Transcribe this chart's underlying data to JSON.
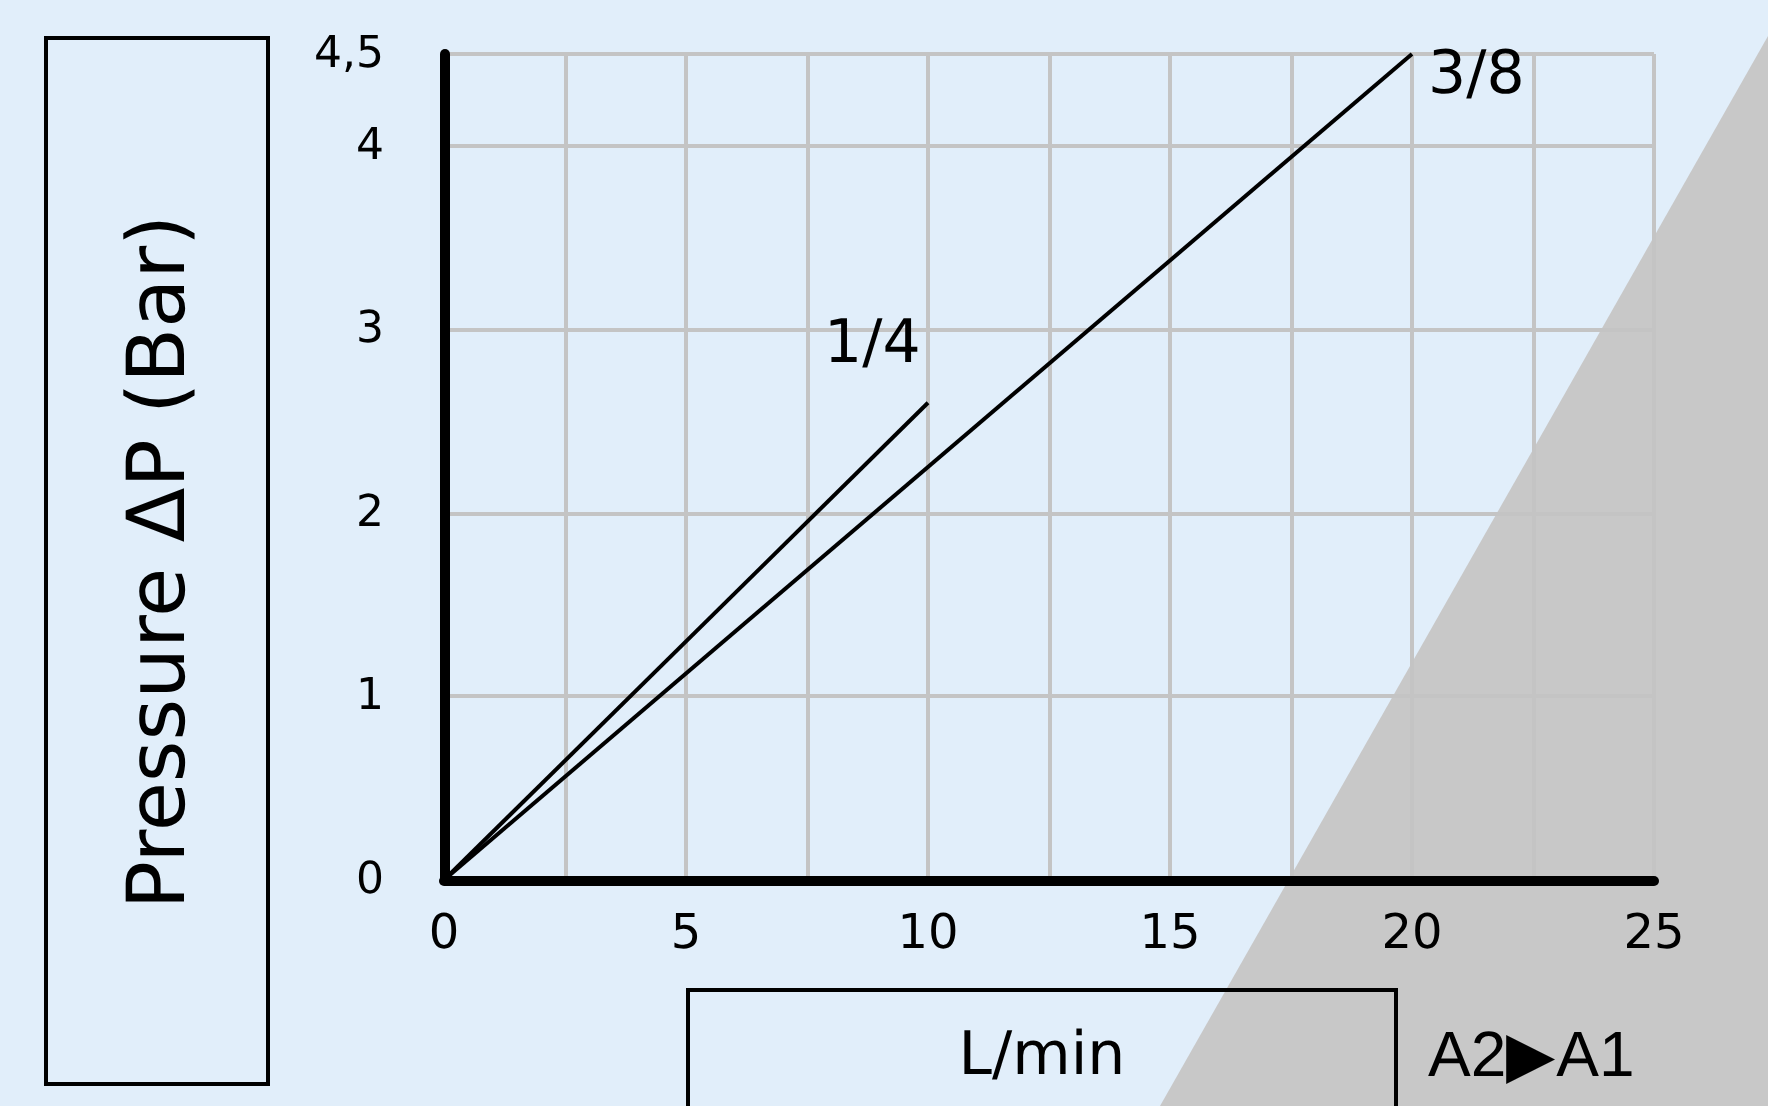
{
  "chart_data": {
    "type": "line",
    "xlabel": "L/min",
    "ylabel": "Pressure ΔP (Bar)",
    "annotations": [
      "A2▶A1"
    ],
    "series": [
      {
        "name": "1/4",
        "color": "#000000",
        "x": [
          0,
          10
        ],
        "values": [
          0,
          2.6
        ]
      },
      {
        "name": "3/8",
        "color": "#000000",
        "x": [
          0,
          20
        ],
        "values": [
          0,
          4.5
        ]
      }
    ],
    "xlim": [
      0,
      25
    ],
    "xticks": [
      0,
      {
        "value": 2.5,
        "label": null
      },
      5,
      {
        "value": 7.5,
        "label": null
      },
      10,
      {
        "value": 12.5,
        "label": null
      },
      15,
      {
        "value": 17.5,
        "label": null
      },
      20,
      {
        "value": 22.5,
        "label": null
      },
      25
    ],
    "ylim": [
      0,
      4.5
    ],
    "yticks": [
      0,
      1,
      2,
      3,
      4,
      {
        "value": 4.5,
        "label": "4,5"
      }
    ],
    "grid": true,
    "legend": false,
    "marker": "none",
    "line_style": "solid"
  }
}
